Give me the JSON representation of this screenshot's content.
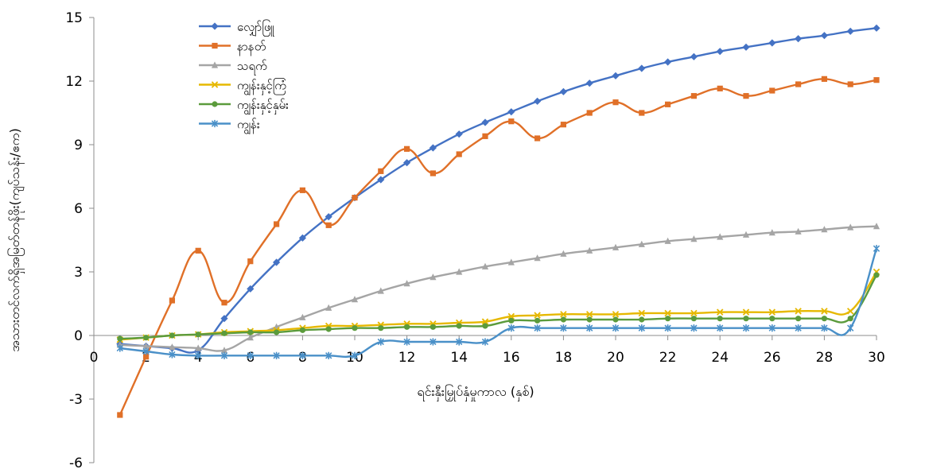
{
  "chart_data": {
    "type": "line",
    "title": "",
    "xlabel": "ရင်းနှီးမြှုပ်နှံမှုကာလ (နှစ်)",
    "ylabel": "အသားတင်လက်ရှိအမြတ်တန်ဖိုး(ကျပ်သန်း/ဧက)",
    "xlim": [
      0,
      30
    ],
    "ylim": [
      -6,
      15
    ],
    "x_ticks": [
      0,
      2,
      4,
      6,
      8,
      10,
      12,
      14,
      16,
      18,
      20,
      22,
      24,
      26,
      28,
      30
    ],
    "y_ticks": [
      -6,
      -3,
      0,
      3,
      6,
      9,
      12,
      15
    ],
    "grid": false,
    "legend_position": "top-left",
    "x": [
      1,
      2,
      3,
      4,
      5,
      6,
      7,
      8,
      9,
      10,
      11,
      12,
      13,
      14,
      15,
      16,
      17,
      18,
      19,
      20,
      21,
      22,
      23,
      24,
      25,
      26,
      27,
      28,
      29,
      30
    ],
    "series": [
      {
        "name": "လျှော်ဖြူ",
        "color": "#4472C4",
        "marker": "diamond",
        "values": [
          -0.4,
          -0.5,
          -0.6,
          -0.7,
          0.8,
          2.2,
          3.45,
          4.6,
          5.6,
          6.5,
          7.35,
          8.15,
          8.85,
          9.5,
          10.05,
          10.55,
          11.05,
          11.5,
          11.9,
          12.25,
          12.6,
          12.9,
          13.15,
          13.4,
          13.6,
          13.8,
          14.0,
          14.15,
          14.35,
          14.5
        ]
      },
      {
        "name": "နာနတ်",
        "color": "#E07028",
        "marker": "square",
        "values": [
          -3.75,
          -1.0,
          1.65,
          4.0,
          1.55,
          3.5,
          5.25,
          6.85,
          5.2,
          6.5,
          7.75,
          8.8,
          7.65,
          8.55,
          9.4,
          10.1,
          9.3,
          9.95,
          10.5,
          11.0,
          10.5,
          10.9,
          11.3,
          11.65,
          11.3,
          11.55,
          11.85,
          12.1,
          11.85,
          12.05
        ]
      },
      {
        "name": "သရက်",
        "color": "#A5A5A5",
        "marker": "triangle",
        "values": [
          -0.45,
          -0.5,
          -0.55,
          -0.6,
          -0.7,
          -0.1,
          0.4,
          0.85,
          1.3,
          1.7,
          2.1,
          2.45,
          2.75,
          3.0,
          3.25,
          3.45,
          3.65,
          3.85,
          4.0,
          4.15,
          4.3,
          4.45,
          4.55,
          4.65,
          4.75,
          4.85,
          4.9,
          5.0,
          5.1,
          5.15
        ]
      },
      {
        "name": "ကျွန်းနှင့်ကြံ",
        "color": "#E6B800",
        "marker": "x",
        "values": [
          -0.2,
          -0.1,
          0.0,
          0.05,
          0.15,
          0.2,
          0.25,
          0.35,
          0.45,
          0.45,
          0.5,
          0.55,
          0.55,
          0.6,
          0.65,
          0.9,
          0.95,
          1.0,
          1.0,
          1.0,
          1.05,
          1.05,
          1.05,
          1.1,
          1.1,
          1.1,
          1.15,
          1.15,
          1.15,
          3.0
        ]
      },
      {
        "name": "ကျွန်းနှင့်နှမ်း",
        "color": "#5B9B3C",
        "marker": "circle",
        "values": [
          -0.15,
          -0.1,
          0.0,
          0.05,
          0.1,
          0.15,
          0.15,
          0.25,
          0.3,
          0.35,
          0.35,
          0.4,
          0.4,
          0.45,
          0.45,
          0.7,
          0.7,
          0.75,
          0.75,
          0.75,
          0.75,
          0.8,
          0.8,
          0.8,
          0.8,
          0.8,
          0.8,
          0.8,
          0.8,
          2.85
        ]
      },
      {
        "name": "ကျွန်း",
        "color": "#4A90C8",
        "marker": "star",
        "values": [
          -0.6,
          -0.75,
          -0.9,
          -0.95,
          -0.95,
          -0.95,
          -0.95,
          -0.95,
          -0.95,
          -0.95,
          -0.3,
          -0.3,
          -0.3,
          -0.3,
          -0.3,
          0.35,
          0.35,
          0.35,
          0.35,
          0.35,
          0.35,
          0.35,
          0.35,
          0.35,
          0.35,
          0.35,
          0.35,
          0.35,
          0.35,
          4.1
        ]
      }
    ]
  }
}
